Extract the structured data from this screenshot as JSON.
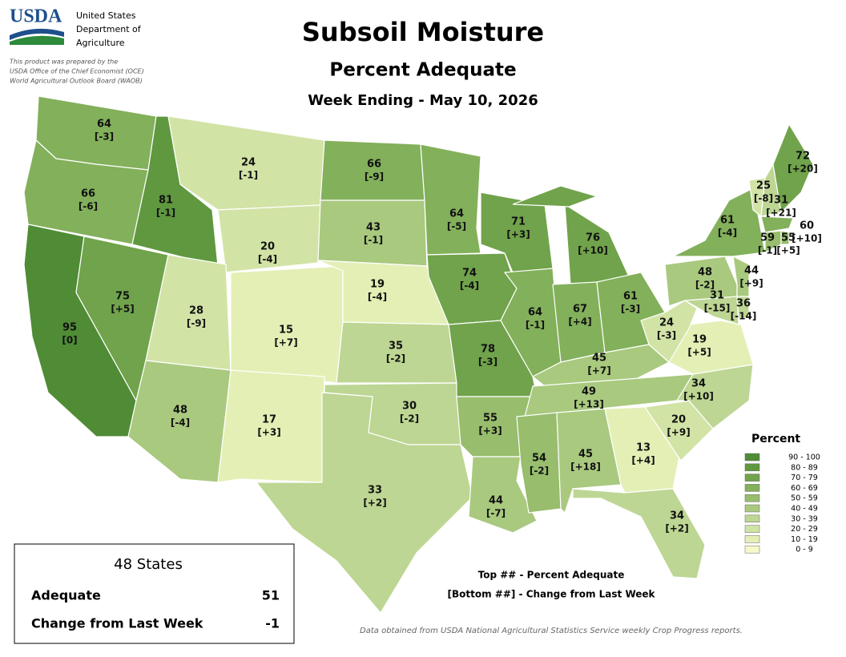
{
  "header": {
    "agency_short": "USDA",
    "agency_lines": [
      "United States",
      "Department of",
      "Agriculture"
    ],
    "disclaimer": [
      "This product was prepared by the",
      "USDA Office of the Chief Economist (OCE)",
      "World Agricultural Outlook Board (WAOB)"
    ]
  },
  "title": "Subsoil Moisture",
  "subtitle": "Percent Adequate",
  "week": "Week Ending - May 10, 2026",
  "states": [
    {
      "value": 64,
      "change": "[-3]"
    },
    {
      "value": 66,
      "change": "[-6]"
    },
    {
      "value": 95,
      "change": "[0]"
    },
    {
      "value": 75,
      "change": "[+5]"
    },
    {
      "value": 81,
      "change": "[-1]"
    },
    {
      "value": 24,
      "change": "[-1]"
    },
    {
      "value": 20,
      "change": "[-4]"
    },
    {
      "value": 28,
      "change": "[-9]"
    },
    {
      "value": 15,
      "change": "[+7]"
    },
    {
      "value": 48,
      "change": "[-4]"
    },
    {
      "value": 17,
      "change": "[+3]"
    },
    {
      "value": 66,
      "change": "[-9]"
    },
    {
      "value": 43,
      "change": "[-1]"
    },
    {
      "value": 19,
      "change": "[-4]"
    },
    {
      "value": 35,
      "change": "[-2]"
    },
    {
      "value": 30,
      "change": "[-2]"
    },
    {
      "value": 33,
      "change": "[+2]"
    },
    {
      "value": 64,
      "change": "[-5]"
    },
    {
      "value": 74,
      "change": "[-4]"
    },
    {
      "value": 78,
      "change": "[-3]"
    },
    {
      "value": 55,
      "change": "[+3]"
    },
    {
      "value": 44,
      "change": "[-7]"
    },
    {
      "value": 71,
      "change": "[+3]"
    },
    {
      "value": 64,
      "change": "[-1]"
    },
    {
      "value": 76,
      "change": "[+10]"
    },
    {
      "value": 67,
      "change": "[+4]"
    },
    {
      "value": 61,
      "change": "[-3]"
    },
    {
      "value": 45,
      "change": "[+7]"
    },
    {
      "value": 49,
      "change": "[+13]"
    },
    {
      "value": 54,
      "change": "[-2]"
    },
    {
      "value": 45,
      "change": "[+18]"
    },
    {
      "value": 13,
      "change": "[+4]"
    },
    {
      "value": 34,
      "change": "[+2]"
    },
    {
      "value": 20,
      "change": "[+9]"
    },
    {
      "value": 34,
      "change": "[+10]"
    },
    {
      "value": 19,
      "change": "[+5]"
    },
    {
      "value": 24,
      "change": "[-3]"
    },
    {
      "value": 31,
      "change": "[-15]"
    },
    {
      "value": 36,
      "change": "[-14]"
    },
    {
      "value": 48,
      "change": "[-2]"
    },
    {
      "value": 44,
      "change": "[+9]"
    },
    {
      "value": 61,
      "change": "[-4]"
    },
    {
      "value": 25,
      "change": "[-8]"
    },
    {
      "value": 31,
      "change": "[+21]"
    },
    {
      "value": 72,
      "change": "[+20]"
    },
    {
      "value": 60,
      "change": "[+10]"
    },
    {
      "value": 59,
      "change": "[-1]"
    },
    {
      "value": 55,
      "change": "[+5]"
    }
  ],
  "legend": {
    "title": "Percent",
    "bins": [
      {
        "label": "90 - 100",
        "color": "#4f8c35"
      },
      {
        "label": "80 - 89",
        "color": "#5f983f"
      },
      {
        "label": "70 - 79",
        "color": "#70a34b"
      },
      {
        "label": "60 - 69",
        "color": "#83b05b"
      },
      {
        "label": "50 - 59",
        "color": "#97bd6d"
      },
      {
        "label": "40 - 49",
        "color": "#a9c97f"
      },
      {
        "label": "30 - 39",
        "color": "#bdd693"
      },
      {
        "label": "20 - 29",
        "color": "#d2e3a6"
      },
      {
        "label": "10 - 19",
        "color": "#e4efb6"
      },
      {
        "label": "0 - 9",
        "color": "#f5f9c9"
      }
    ]
  },
  "summary": {
    "title": "48 States",
    "rows": [
      {
        "label": "Adequate",
        "value": 51
      },
      {
        "label": "Change from Last Week",
        "value": -1
      }
    ]
  },
  "notes": [
    "Top ## - Percent Adequate",
    "[Bottom ##] - Change from Last Week"
  ],
  "source": "Data obtained from USDA National Agricultural Statistics Service weekly Crop Progress reports."
}
